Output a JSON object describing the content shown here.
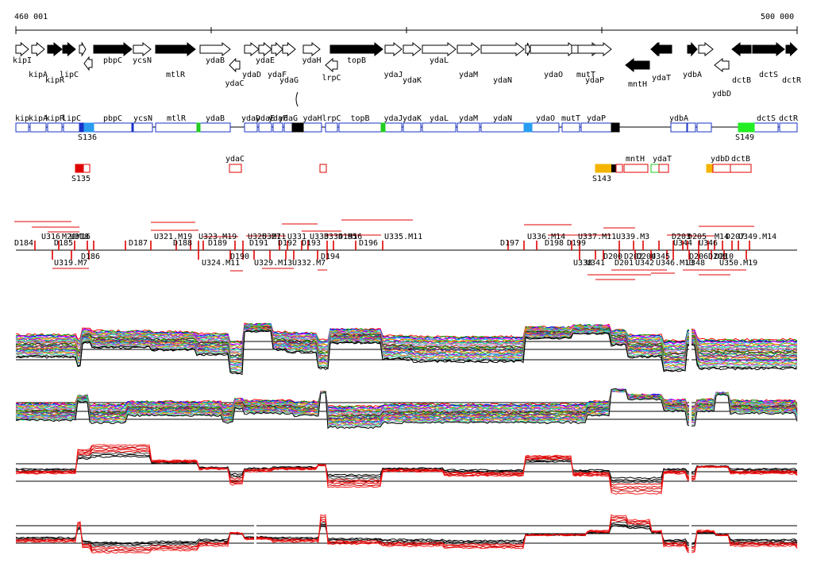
{
  "coords": {
    "start": "460 001",
    "end": "500 000"
  },
  "genes_top": [
    {
      "name": "kipI",
      "dir": "r",
      "fill": "white",
      "lbl": "a"
    },
    {
      "name": "kipA",
      "dir": "r",
      "fill": "white",
      "lbl": "b"
    },
    {
      "name": "kipR",
      "dir": "r",
      "fill": "black",
      "lbl": "c"
    },
    {
      "name": "lipC",
      "dir": "r",
      "fill": "black",
      "lbl": "b"
    },
    {
      "name": "",
      "dir": "r",
      "fill": "white",
      "lbl": "a"
    },
    {
      "name": "",
      "dir": "l",
      "fill": "white",
      "lbl": "a"
    },
    {
      "name": "pbpC",
      "dir": "r",
      "fill": "black",
      "lbl": "a"
    },
    {
      "name": "ycsN",
      "dir": "r",
      "fill": "white",
      "lbl": "a"
    },
    {
      "name": "mtlR",
      "dir": "r",
      "fill": "black",
      "lbl": "b"
    },
    {
      "name": "ydaB",
      "dir": "r",
      "fill": "white",
      "lbl": "a"
    },
    {
      "name": "ydaC",
      "dir": "l",
      "fill": "white",
      "lbl": "c"
    },
    {
      "name": "ydaD",
      "dir": "r",
      "fill": "white",
      "lbl": "b"
    },
    {
      "name": "ydaE",
      "dir": "r",
      "fill": "white",
      "lbl": "a"
    },
    {
      "name": "ydaF",
      "dir": "r",
      "fill": "white",
      "lbl": "b"
    },
    {
      "name": "ydaG",
      "dir": "r",
      "fill": "white",
      "lbl": "c"
    },
    {
      "name": "ydaH",
      "dir": "r",
      "fill": "white",
      "lbl": "a"
    },
    {
      "name": "lrpC",
      "dir": "l",
      "fill": "white",
      "lbl": "b"
    },
    {
      "name": "topB",
      "dir": "r",
      "fill": "black",
      "lbl": "a"
    },
    {
      "name": "ydaJ",
      "dir": "r",
      "fill": "white",
      "lbl": "b"
    },
    {
      "name": "ydaK",
      "dir": "r",
      "fill": "white",
      "lbl": "c"
    },
    {
      "name": "ydaL",
      "dir": "r",
      "fill": "white",
      "lbl": "a"
    },
    {
      "name": "ydaM",
      "dir": "r",
      "fill": "white",
      "lbl": "b"
    },
    {
      "name": "ydaN",
      "dir": "r",
      "fill": "white",
      "lbl": "c"
    },
    {
      "name": "",
      "dir": "r",
      "fill": "white",
      "lbl": "c"
    },
    {
      "name": "ydaO",
      "dir": "r",
      "fill": "white",
      "lbl": "b"
    },
    {
      "name": "mutT",
      "dir": "r",
      "fill": "white",
      "lbl": "b"
    },
    {
      "name": "ydaP",
      "dir": "r",
      "fill": "white",
      "lbl": "c"
    },
    {
      "name": "mntH",
      "dir": "l",
      "fill": "black",
      "lbl": "d"
    },
    {
      "name": "",
      "dir": "l",
      "fill": "white",
      "lbl": "c"
    },
    {
      "name": "ydaT",
      "dir": "l",
      "fill": "black",
      "lbl": "c"
    },
    {
      "name": "ydbA",
      "dir": "r",
      "fill": "black",
      "lbl": "b"
    },
    {
      "name": "",
      "dir": "r",
      "fill": "white",
      "lbl": "b"
    },
    {
      "name": "ydbD",
      "dir": "l",
      "fill": "white",
      "lbl": "d"
    },
    {
      "name": "dctB",
      "dir": "l",
      "fill": "black",
      "lbl": "c"
    },
    {
      "name": "dctS",
      "dir": "r",
      "fill": "black",
      "lbl": "b"
    },
    {
      "name": "dctR",
      "dir": "r",
      "fill": "black",
      "lbl": "c"
    }
  ],
  "gene_row2": [
    "kip",
    "kipA",
    "kipR",
    "lipC",
    "pbpC",
    "ycsN",
    "mtlR",
    "ydaB",
    "ydaD",
    "ydaE",
    "ydaF",
    "ydaG",
    "ydaH",
    "lrpC",
    "topB",
    "ydaJ",
    "ydaK",
    "ydaL",
    "ydaM",
    "ydaN",
    "ydaO",
    "mutT",
    "ydaP",
    "ydbA",
    "dctS",
    "dctR"
  ],
  "sites": [
    "S136",
    "S149"
  ],
  "features_row3": [
    "ydaC",
    "S135",
    "mntH",
    "ydaT",
    "ydbD",
    "dctB",
    "S143"
  ],
  "segments_above": [
    "D184",
    "U316",
    "D185",
    "M20",
    "U318",
    "M16",
    "D187",
    "U321.M19",
    "D188",
    "U323.M19",
    "D189",
    "U325.M11",
    "D191",
    "U327",
    "D192",
    "U331",
    "D193",
    "U333",
    "U334.M16",
    "D195",
    "U335.M11",
    "D196",
    "D197",
    "U336.M14",
    "D198",
    "U337.M11",
    "D199",
    "U339.M3",
    "D203",
    "U344",
    "D205",
    "U346",
    "M14",
    "D207",
    "U349.M14"
  ],
  "segments_below": [
    "U319.M7",
    "D186",
    "U324.M11",
    "D190",
    "U329.M13",
    "U332.M7",
    "D194",
    "U338",
    "U341",
    "D200",
    "D201",
    "D202",
    "U342",
    "D204",
    "U345",
    "U346.M13",
    "D206",
    "U348",
    "D208",
    "D210",
    "U350.M19"
  ]
}
